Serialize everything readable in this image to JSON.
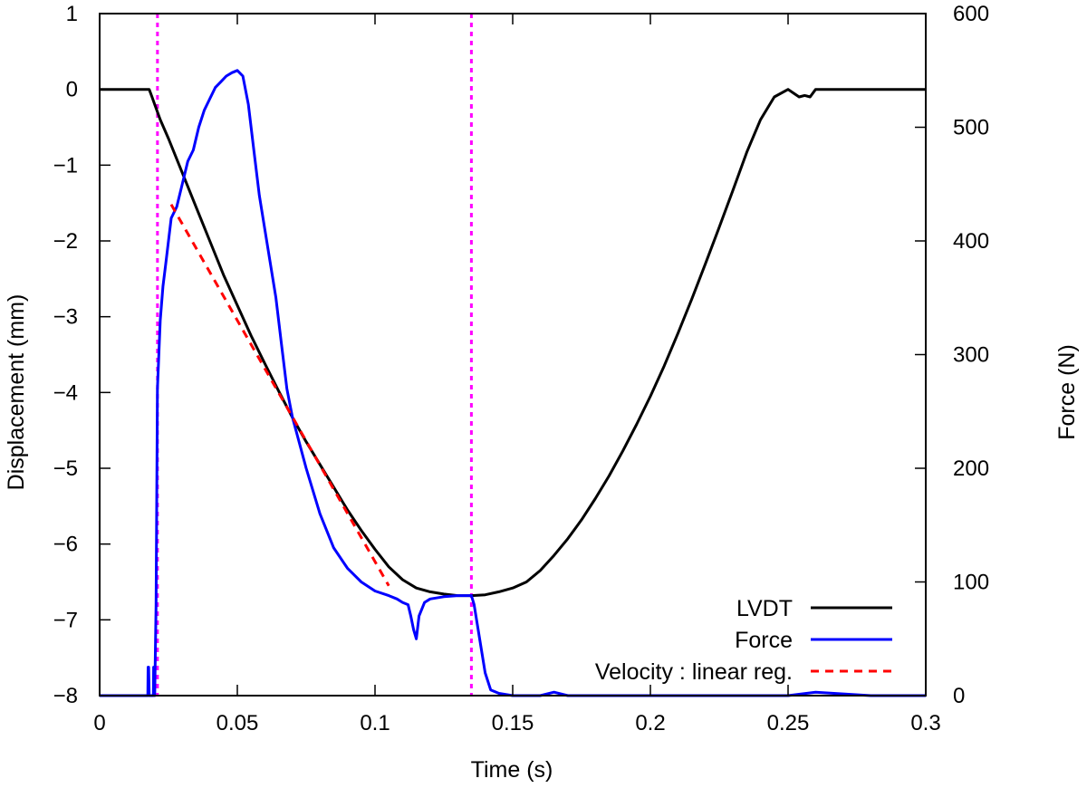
{
  "chart_data": {
    "type": "line",
    "xlabel": "Time (s)",
    "ylabel": "Displacement (mm)",
    "y2label": "Force (N)",
    "xlim": [
      0,
      0.3
    ],
    "ylim": [
      -8,
      1
    ],
    "y2lim": [
      0,
      600
    ],
    "x_ticks": [
      {
        "value": 0,
        "label": "0"
      },
      {
        "value": 0.05,
        "label": "0.05"
      },
      {
        "value": 0.1,
        "label": "0.1"
      },
      {
        "value": 0.15,
        "label": "0.15"
      },
      {
        "value": 0.2,
        "label": "0.2"
      },
      {
        "value": 0.25,
        "label": "0.25"
      },
      {
        "value": 0.3,
        "label": "0.3"
      }
    ],
    "y_ticks": [
      {
        "value": 1,
        "label": "1"
      },
      {
        "value": 0,
        "label": "0"
      },
      {
        "value": -1,
        "label": "−1"
      },
      {
        "value": -2,
        "label": "−2"
      },
      {
        "value": -3,
        "label": "−3"
      },
      {
        "value": -4,
        "label": "−4"
      },
      {
        "value": -5,
        "label": "−5"
      },
      {
        "value": -6,
        "label": "−6"
      },
      {
        "value": -7,
        "label": "−7"
      },
      {
        "value": -8,
        "label": "−8"
      }
    ],
    "y2_ticks": [
      {
        "value": 600,
        "label": "600"
      },
      {
        "value": 500,
        "label": "500"
      },
      {
        "value": 400,
        "label": "400"
      },
      {
        "value": 300,
        "label": "300"
      },
      {
        "value": 200,
        "label": "200"
      },
      {
        "value": 100,
        "label": "100"
      },
      {
        "value": 0,
        "label": "0"
      }
    ],
    "grid": false,
    "legend_position": "bottom-right",
    "series": [
      {
        "name": "LVDT",
        "axis": "left",
        "color": "#000000",
        "style": "solid",
        "x": [
          0,
          0.005,
          0.01,
          0.015,
          0.018,
          0.019,
          0.02,
          0.022,
          0.025,
          0.03,
          0.035,
          0.04,
          0.045,
          0.05,
          0.055,
          0.06,
          0.065,
          0.07,
          0.075,
          0.08,
          0.085,
          0.09,
          0.095,
          0.1,
          0.105,
          0.11,
          0.115,
          0.12,
          0.125,
          0.13,
          0.135,
          0.14,
          0.145,
          0.15,
          0.155,
          0.16,
          0.165,
          0.17,
          0.175,
          0.18,
          0.185,
          0.19,
          0.195,
          0.2,
          0.205,
          0.21,
          0.215,
          0.22,
          0.225,
          0.23,
          0.235,
          0.24,
          0.245,
          0.25,
          0.252,
          0.254,
          0.256,
          0.258,
          0.26,
          0.27,
          0.28,
          0.29,
          0.3
        ],
        "y": [
          0,
          0,
          0,
          0,
          0,
          -0.1,
          -0.2,
          -0.4,
          -0.65,
          -1.1,
          -1.55,
          -2.0,
          -2.45,
          -2.85,
          -3.25,
          -3.62,
          -3.98,
          -4.33,
          -4.65,
          -4.95,
          -5.25,
          -5.55,
          -5.82,
          -6.07,
          -6.3,
          -6.47,
          -6.58,
          -6.63,
          -6.66,
          -6.68,
          -6.68,
          -6.67,
          -6.63,
          -6.58,
          -6.5,
          -6.35,
          -6.15,
          -5.93,
          -5.68,
          -5.4,
          -5.1,
          -4.77,
          -4.42,
          -4.05,
          -3.65,
          -3.22,
          -2.77,
          -2.3,
          -1.82,
          -1.33,
          -0.83,
          -0.4,
          -0.1,
          0,
          -0.05,
          -0.1,
          -0.08,
          -0.1,
          0,
          0,
          0,
          0,
          0
        ]
      },
      {
        "name": "Force",
        "axis": "right",
        "color": "#0000ff",
        "style": "solid",
        "x": [
          0,
          0.005,
          0.01,
          0.015,
          0.0175,
          0.0176,
          0.0178,
          0.018,
          0.019,
          0.0195,
          0.0196,
          0.0198,
          0.02,
          0.0205,
          0.021,
          0.022,
          0.023,
          0.024,
          0.025,
          0.026,
          0.028,
          0.03,
          0.032,
          0.034,
          0.036,
          0.038,
          0.04,
          0.042,
          0.044,
          0.046,
          0.048,
          0.05,
          0.052,
          0.054,
          0.056,
          0.058,
          0.06,
          0.062,
          0.064,
          0.066,
          0.068,
          0.07,
          0.075,
          0.08,
          0.085,
          0.09,
          0.095,
          0.1,
          0.105,
          0.108,
          0.11,
          0.112,
          0.113,
          0.114,
          0.115,
          0.116,
          0.118,
          0.12,
          0.125,
          0.13,
          0.135,
          0.136,
          0.138,
          0.14,
          0.142,
          0.145,
          0.15,
          0.16,
          0.165,
          0.17,
          0.18,
          0.2,
          0.22,
          0.24,
          0.25,
          0.26,
          0.28,
          0.3
        ],
        "y": [
          0,
          0,
          0,
          0,
          0,
          25,
          25,
          0,
          0,
          0,
          25,
          25,
          0,
          80,
          270,
          330,
          360,
          380,
          400,
          420,
          430,
          450,
          470,
          480,
          500,
          515,
          525,
          535,
          540,
          545,
          548,
          550,
          545,
          520,
          480,
          440,
          410,
          380,
          350,
          310,
          270,
          245,
          200,
          160,
          130,
          112,
          100,
          92,
          88,
          85,
          82,
          80,
          70,
          58,
          50,
          70,
          82,
          85,
          87,
          88,
          88,
          80,
          50,
          20,
          5,
          2,
          0,
          0,
          3,
          0,
          0,
          0,
          0,
          0,
          0,
          3,
          0,
          0
        ]
      },
      {
        "name": "Velocity : linear reg.",
        "axis": "left",
        "color": "#ff0000",
        "style": "dashed",
        "x": [
          0.026,
          0.105
        ],
        "y": [
          -1.52,
          -6.55
        ]
      }
    ],
    "vertical_markers": [
      {
        "x": 0.021,
        "color": "#ff00ff",
        "style": "dotted"
      },
      {
        "x": 0.135,
        "color": "#ff00ff",
        "style": "dotted"
      }
    ]
  }
}
